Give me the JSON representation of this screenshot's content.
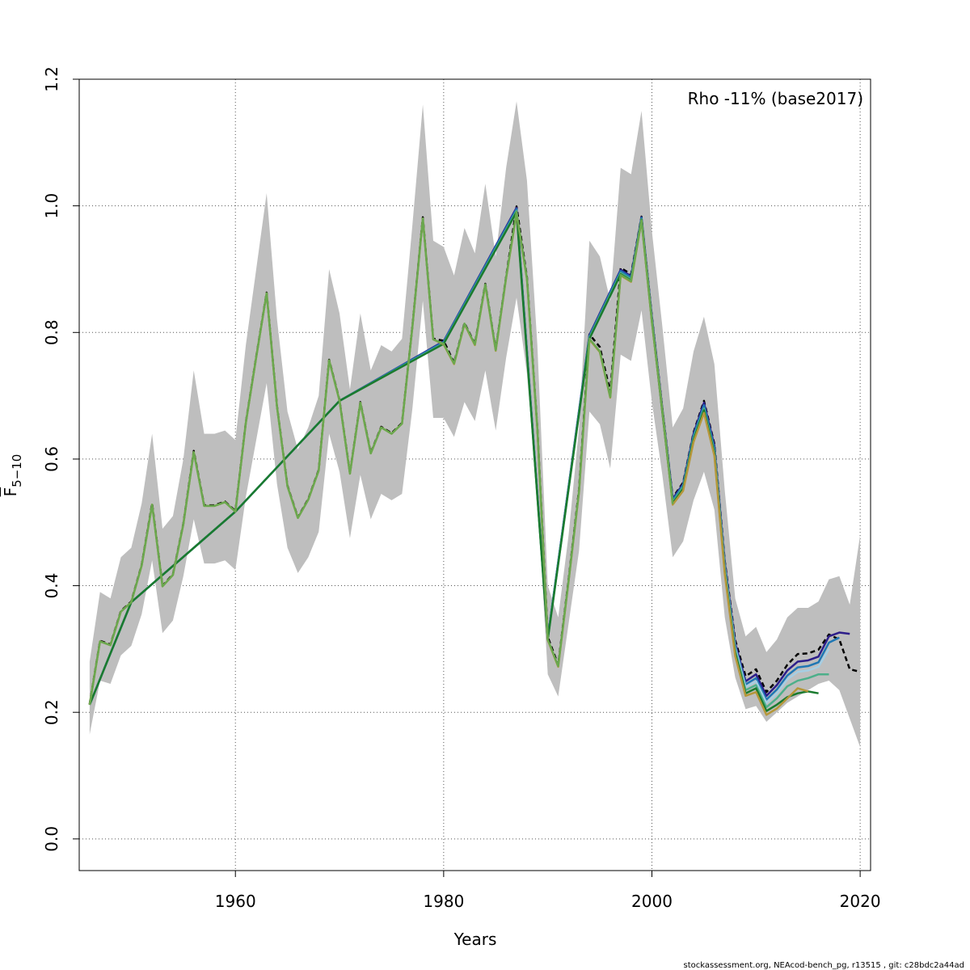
{
  "chart_data": {
    "type": "line",
    "title": "",
    "xlabel": "Years",
    "ylabel": "F̄5−10",
    "ylabel_main": "F",
    "ylabel_sub": "5−10",
    "xlim": [
      1945,
      2021
    ],
    "ylim": [
      -0.05,
      1.2
    ],
    "xticks": [
      1960,
      1980,
      2000,
      2020
    ],
    "yticks": [
      0.0,
      0.2,
      0.4,
      0.6,
      0.8,
      1.0,
      1.2
    ],
    "xtick_labels": [
      "1960",
      "1980",
      "2000",
      "2020"
    ],
    "ytick_labels": [
      "0.0",
      "0.2",
      "0.4",
      "0.6",
      "0.8",
      "1.0",
      "1.2"
    ],
    "grid": true,
    "legend_text": "Rho -11% (base2017)",
    "legend_position": "top-right",
    "footer": "stockassessment.org, NEAcod-bench_pg, r13515 , git: c28bdc2a44ad",
    "band_color": "#bebebe",
    "band": {
      "years": [
        1946,
        1947,
        1948,
        1949,
        1950,
        1951,
        1952,
        1953,
        1954,
        1955,
        1956,
        1957,
        1958,
        1959,
        1960,
        1961,
        1962,
        1963,
        1964,
        1965,
        1966,
        1967,
        1968,
        1969,
        1970,
        1971,
        1972,
        1973,
        1974,
        1975,
        1976,
        1977,
        1978,
        1979,
        1980,
        1981,
        1982,
        1983,
        1984,
        1985,
        1986,
        1987,
        1988,
        1989,
        1990,
        1991,
        1992,
        1993,
        1994,
        1995,
        1996,
        1997,
        1998,
        1999,
        2000,
        2001,
        2002,
        2003,
        2004,
        2005,
        2006,
        2007,
        2008,
        2009,
        2010,
        2011,
        2012,
        2013,
        2014,
        2015,
        2016,
        2017,
        2018,
        2019,
        2020
      ],
      "upper": [
        0.28,
        0.39,
        0.38,
        0.445,
        0.46,
        0.53,
        0.64,
        0.49,
        0.51,
        0.6,
        0.74,
        0.64,
        0.64,
        0.645,
        0.63,
        0.78,
        0.9,
        1.02,
        0.82,
        0.675,
        0.615,
        0.65,
        0.7,
        0.9,
        0.83,
        0.71,
        0.83,
        0.74,
        0.78,
        0.77,
        0.79,
        0.97,
        1.16,
        0.945,
        0.935,
        0.89,
        0.965,
        0.925,
        1.035,
        0.92,
        1.06,
        1.165,
        1.04,
        0.78,
        0.4,
        0.35,
        0.48,
        0.65,
        0.945,
        0.92,
        0.85,
        1.06,
        1.05,
        1.15,
        0.96,
        0.81,
        0.65,
        0.68,
        0.77,
        0.825,
        0.75,
        0.55,
        0.38,
        0.32,
        0.335,
        0.295,
        0.315,
        0.35,
        0.365,
        0.365,
        0.375,
        0.41,
        0.415,
        0.37,
        0.48
      ],
      "lower": [
        0.165,
        0.25,
        0.245,
        0.29,
        0.305,
        0.355,
        0.44,
        0.325,
        0.345,
        0.415,
        0.505,
        0.435,
        0.435,
        0.44,
        0.425,
        0.54,
        0.63,
        0.72,
        0.56,
        0.46,
        0.42,
        0.445,
        0.485,
        0.64,
        0.58,
        0.475,
        0.575,
        0.505,
        0.545,
        0.535,
        0.545,
        0.68,
        0.85,
        0.665,
        0.665,
        0.635,
        0.69,
        0.66,
        0.74,
        0.645,
        0.76,
        0.855,
        0.735,
        0.54,
        0.26,
        0.225,
        0.34,
        0.455,
        0.675,
        0.655,
        0.585,
        0.765,
        0.755,
        0.835,
        0.69,
        0.575,
        0.445,
        0.47,
        0.535,
        0.58,
        0.52,
        0.35,
        0.255,
        0.205,
        0.21,
        0.185,
        0.2,
        0.215,
        0.225,
        0.235,
        0.245,
        0.25,
        0.235,
        0.19,
        0.145
      ]
    },
    "series": [
      {
        "color": "#000000",
        "dashed": true,
        "years": [
          1946,
          1947,
          1948,
          1949,
          1950,
          1951,
          1952,
          1953,
          1954,
          1955,
          1956,
          1957,
          1958,
          1959,
          1960,
          1961,
          1962,
          1963,
          1964,
          1965,
          1966,
          1967,
          1968,
          1969,
          1970,
          1971,
          1972,
          1973,
          1974,
          1975,
          1976,
          1977,
          1978,
          1979,
          1980,
          1981,
          1982,
          1983,
          1984,
          1985,
          1986,
          1987,
          1988,
          1989,
          1990,
          1991,
          1992,
          1993,
          1994,
          1995,
          1996,
          1997,
          1998,
          1999,
          2000,
          2001,
          2002,
          2003,
          2004,
          2005,
          2006,
          2007,
          2008,
          2009,
          2010,
          2011,
          2012,
          2013,
          2014,
          2015,
          2016,
          2017,
          2018,
          2019,
          2020
        ],
        "values": [
          0.213,
          0.313,
          0.307,
          0.36,
          0.375,
          0.433,
          0.53,
          0.4,
          0.418,
          0.498,
          0.613,
          0.527,
          0.527,
          0.533,
          0.518,
          0.658,
          0.762,
          0.863,
          0.683,
          0.558,
          0.508,
          0.537,
          0.583,
          0.757,
          0.693,
          0.578,
          0.69,
          0.61,
          0.651,
          0.641,
          0.657,
          0.81,
          0.982,
          0.79,
          0.787,
          0.752,
          0.815,
          0.782,
          0.877,
          0.773,
          0.888,
          0.999,
          0.887,
          0.649,
          0.319,
          0.275,
          0.41,
          0.552,
          0.797,
          0.777,
          0.706,
          0.902,
          0.892,
          0.983,
          0.825,
          0.681,
          0.539,
          0.563,
          0.642,
          0.692,
          0.624,
          0.439,
          0.314,
          0.257,
          0.268,
          0.232,
          0.25,
          0.275,
          0.292,
          0.293,
          0.299,
          0.323,
          0.315,
          0.268,
          0.264
        ]
      },
      {
        "color": "#2d1e8a",
        "dashed": false,
        "years": [
          1946,
          1950,
          1960,
          1970,
          1980,
          1987,
          1990,
          1994,
          1997,
          1998,
          1999,
          2000,
          2002,
          2003,
          2004,
          2005,
          2006,
          2007,
          2008,
          2009,
          2010,
          2011,
          2012,
          2013,
          2014,
          2015,
          2016,
          2017,
          2018,
          2019
        ],
        "values": [
          0.212,
          0.374,
          0.517,
          0.692,
          0.786,
          0.997,
          0.318,
          0.796,
          0.899,
          0.889,
          0.982,
          0.824,
          0.537,
          0.561,
          0.64,
          0.689,
          0.621,
          0.436,
          0.309,
          0.249,
          0.26,
          0.226,
          0.243,
          0.266,
          0.28,
          0.282,
          0.288,
          0.32,
          0.326,
          0.324
        ]
      },
      {
        "color": "#1f77b4",
        "dashed": false,
        "years": [
          1946,
          1950,
          1960,
          1970,
          1980,
          1987,
          1990,
          1994,
          1997,
          1998,
          1999,
          2000,
          2002,
          2003,
          2004,
          2005,
          2006,
          2007,
          2008,
          2009,
          2010,
          2011,
          2012,
          2013,
          2014,
          2015,
          2016,
          2017,
          2018
        ],
        "values": [
          0.212,
          0.374,
          0.517,
          0.692,
          0.785,
          0.995,
          0.318,
          0.794,
          0.897,
          0.887,
          0.981,
          0.822,
          0.535,
          0.559,
          0.637,
          0.685,
          0.617,
          0.432,
          0.305,
          0.244,
          0.254,
          0.22,
          0.236,
          0.258,
          0.271,
          0.273,
          0.279,
          0.31,
          0.318
        ]
      },
      {
        "color": "#a6cee3",
        "dashed": false,
        "years": [
          2006,
          2007,
          2008,
          2009,
          2010,
          2011,
          2012,
          2013,
          2014,
          2015,
          2016,
          2017
        ],
        "values": [
          0.614,
          0.429,
          0.302,
          0.24,
          0.249,
          0.215,
          0.23,
          0.252,
          0.264,
          0.266,
          0.272,
          0.3
        ]
      },
      {
        "color": "#4daf8a",
        "dashed": false,
        "years": [
          1946,
          1950,
          1960,
          1970,
          1980,
          1987,
          1990,
          1994,
          1997,
          1998,
          1999,
          2000,
          2002,
          2003,
          2004,
          2005,
          2006,
          2007,
          2008,
          2009,
          2010,
          2011,
          2012,
          2013,
          2014,
          2015,
          2016,
          2017
        ],
        "values": [
          0.212,
          0.374,
          0.517,
          0.692,
          0.783,
          0.992,
          0.316,
          0.792,
          0.894,
          0.884,
          0.979,
          0.82,
          0.532,
          0.556,
          0.633,
          0.68,
          0.612,
          0.426,
          0.298,
          0.235,
          0.243,
          0.208,
          0.222,
          0.241,
          0.25,
          0.254,
          0.26,
          0.26
        ]
      },
      {
        "color": "#1a7a2e",
        "dashed": false,
        "years": [
          1946,
          1950,
          1960,
          1970,
          1980,
          1987,
          1990,
          1994,
          1997,
          1998,
          1999,
          2000,
          2002,
          2003,
          2004,
          2005,
          2006,
          2007,
          2008,
          2009,
          2010,
          2011,
          2012,
          2013,
          2014,
          2015,
          2016
        ],
        "values": [
          0.212,
          0.374,
          0.517,
          0.692,
          0.782,
          0.99,
          0.315,
          0.79,
          0.892,
          0.882,
          0.978,
          0.818,
          0.53,
          0.553,
          0.63,
          0.677,
          0.609,
          0.422,
          0.294,
          0.23,
          0.238,
          0.202,
          0.212,
          0.224,
          0.23,
          0.233,
          0.23
        ]
      },
      {
        "color": "#b5973a",
        "dashed": false,
        "years": [
          1946,
          1947,
          1948,
          1949,
          1950,
          1951,
          1952,
          1953,
          1954,
          1955,
          1956,
          1957,
          1958,
          1959,
          1960,
          1961,
          1962,
          1963,
          1964,
          1965,
          1966,
          1967,
          1968,
          1969,
          1970,
          1971,
          1972,
          1973,
          1974,
          1975,
          1976,
          1977,
          1978,
          1979,
          1980,
          1981,
          1982,
          1983,
          1984,
          1985,
          1986,
          1987,
          1988,
          1989,
          1990,
          1991,
          1992,
          1993,
          1994,
          1995,
          1996,
          1997,
          1998,
          1999,
          2000,
          2001,
          2002,
          2003,
          2004,
          2005,
          2006,
          2007,
          2008,
          2009,
          2010,
          2011,
          2012,
          2013,
          2014,
          2015
        ],
        "values": [
          0.212,
          0.312,
          0.306,
          0.359,
          0.374,
          0.432,
          0.528,
          0.399,
          0.417,
          0.497,
          0.611,
          0.526,
          0.526,
          0.532,
          0.517,
          0.657,
          0.761,
          0.862,
          0.682,
          0.557,
          0.507,
          0.536,
          0.582,
          0.756,
          0.692,
          0.577,
          0.689,
          0.609,
          0.65,
          0.64,
          0.656,
          0.809,
          0.98,
          0.789,
          0.781,
          0.75,
          0.813,
          0.78,
          0.875,
          0.771,
          0.886,
          0.988,
          0.884,
          0.647,
          0.314,
          0.272,
          0.407,
          0.548,
          0.789,
          0.769,
          0.697,
          0.89,
          0.88,
          0.976,
          0.816,
          0.677,
          0.528,
          0.55,
          0.627,
          0.673,
          0.605,
          0.418,
          0.289,
          0.226,
          0.232,
          0.196,
          0.206,
          0.222,
          0.238,
          0.233
        ]
      },
      {
        "color": "#6aa84f",
        "dashed": false,
        "years": [
          1946,
          1947,
          1948,
          1949,
          1950,
          1951,
          1952,
          1953,
          1954,
          1955,
          1956,
          1957,
          1958,
          1959,
          1960,
          1961,
          1962,
          1963,
          1964,
          1965,
          1966,
          1967,
          1968,
          1969,
          1970,
          1971,
          1972,
          1973,
          1974,
          1975,
          1976,
          1977,
          1978,
          1979,
          1980,
          1981,
          1982,
          1983,
          1984,
          1985,
          1986,
          1987,
          1988,
          1989,
          1990,
          1991,
          1992,
          1993,
          1994,
          1995,
          1996,
          1997,
          1998,
          1999,
          2000,
          2001,
          2002
        ],
        "values": [
          0.212,
          0.312,
          0.306,
          0.359,
          0.374,
          0.432,
          0.528,
          0.399,
          0.417,
          0.497,
          0.611,
          0.526,
          0.526,
          0.532,
          0.517,
          0.657,
          0.761,
          0.862,
          0.682,
          0.557,
          0.507,
          0.536,
          0.582,
          0.756,
          0.692,
          0.577,
          0.689,
          0.609,
          0.65,
          0.64,
          0.656,
          0.809,
          0.98,
          0.789,
          0.782,
          0.751,
          0.814,
          0.781,
          0.876,
          0.772,
          0.887,
          0.99,
          0.885,
          0.648,
          0.315,
          0.273,
          0.408,
          0.549,
          0.79,
          0.77,
          0.698,
          0.891,
          0.881,
          0.977,
          0.817,
          0.678,
          0.529
        ]
      }
    ]
  }
}
